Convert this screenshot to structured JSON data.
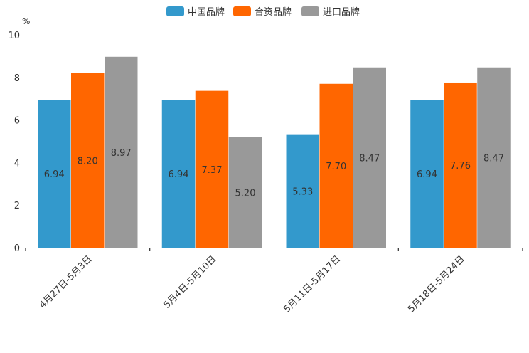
{
  "chart_data": {
    "type": "bar",
    "title": "",
    "ylabel": "%",
    "xlabel": "",
    "ylim": [
      0,
      10
    ],
    "yticks": [
      0,
      2,
      4,
      6,
      8,
      10
    ],
    "legend_position": "top-center",
    "grid": false,
    "categories": [
      "4月27日-5月3日",
      "5月4日-5月10日",
      "5月11日-5月17日",
      "5月18日-5月24日"
    ],
    "series": [
      {
        "name": "中国品牌",
        "color": "#3399cc",
        "values": [
          6.94,
          6.94,
          5.33,
          6.94
        ],
        "labels": [
          "6.94",
          "6.94",
          "5.33",
          "6.94"
        ]
      },
      {
        "name": "合资品牌",
        "color": "#ff6600",
        "values": [
          8.2,
          7.37,
          7.7,
          7.76
        ],
        "labels": [
          "8.20",
          "7.37",
          "7.70",
          "7.76"
        ]
      },
      {
        "name": "进口品牌",
        "color": "#999999",
        "values": [
          8.97,
          5.2,
          8.47,
          8.47
        ],
        "labels": [
          "8.97",
          "5.20",
          "8.47",
          "8.47"
        ]
      }
    ]
  }
}
